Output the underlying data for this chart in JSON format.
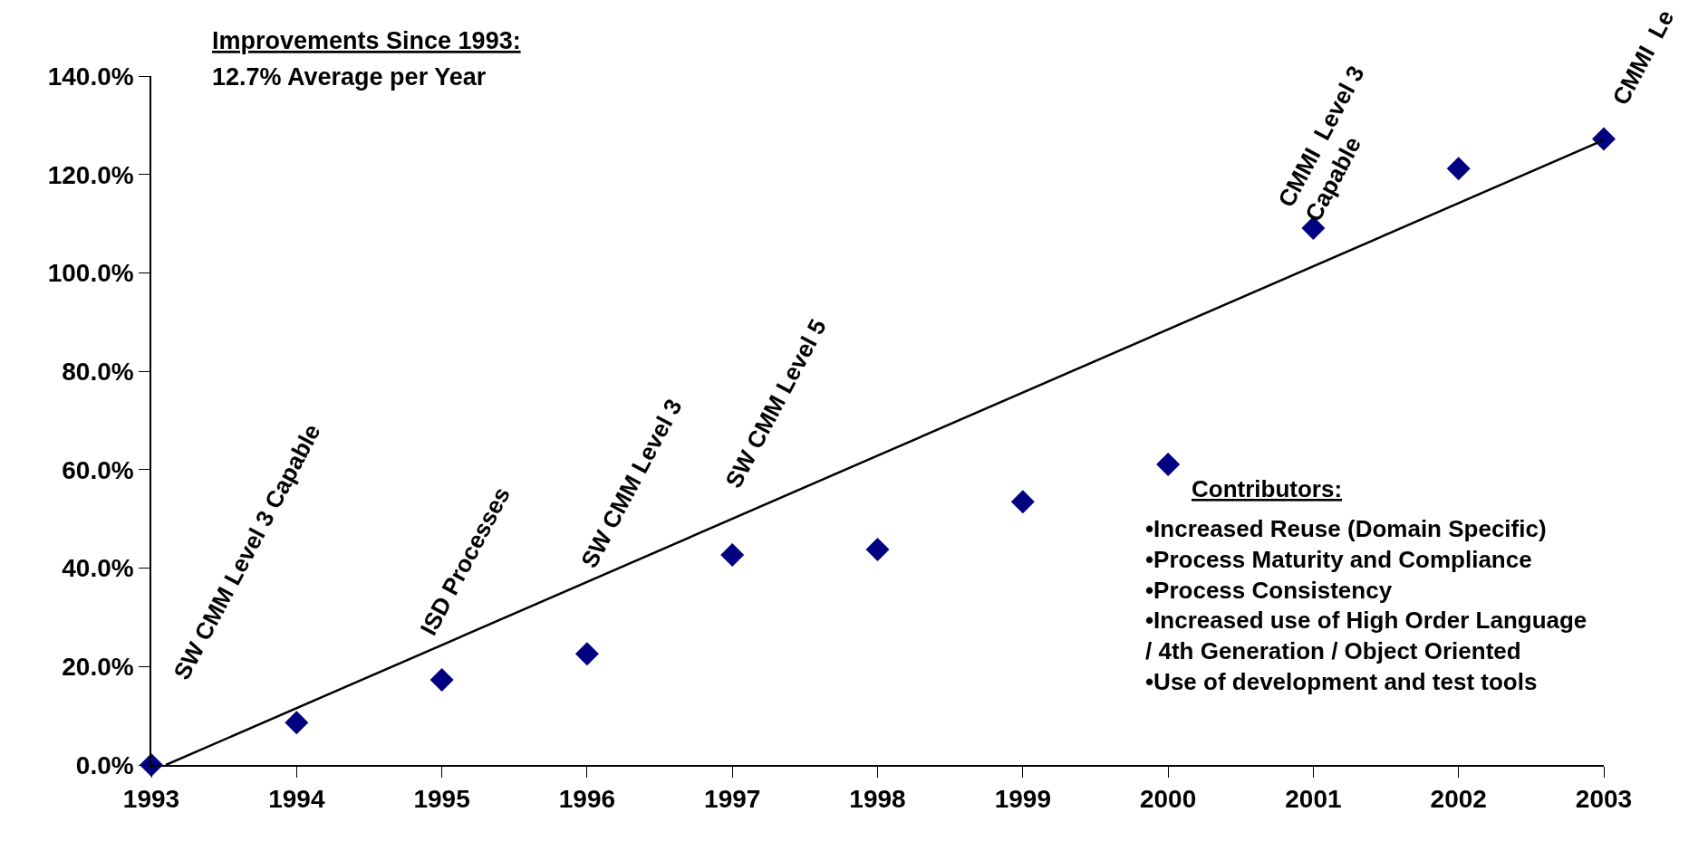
{
  "chart_data": {
    "type": "scatter",
    "title": "Improvements Since 1993:",
    "subtitle": "12.7% Average per Year",
    "x": [
      1993,
      1994,
      1995,
      1996,
      1997,
      1998,
      1999,
      2000,
      2001,
      2002,
      2003
    ],
    "series": [
      {
        "color": "#000080",
        "values": [
          0,
          8.6,
          17.3,
          22.6,
          42.7,
          43.8,
          53.5,
          61.1,
          109.1,
          121.2,
          127.2
        ],
        "marker": "diamond"
      },
      {
        "type": "line",
        "color": "#000000",
        "x": [
          1993.1,
          2003
        ],
        "values": [
          0,
          127
        ],
        "marker": "none",
        "line_style": "solid"
      }
    ],
    "xlim": [
      1993,
      2003
    ],
    "xticks": [
      1993,
      1994,
      1995,
      1996,
      1997,
      1998,
      1999,
      2000,
      2001,
      2002,
      2003
    ],
    "ylim": [
      0,
      140
    ],
    "yticks": [
      {
        "value": 0,
        "label": "0.0%"
      },
      {
        "value": 20,
        "label": "20.0%"
      },
      {
        "value": 40,
        "label": "40.0%"
      },
      {
        "value": 60,
        "label": "60.0%"
      },
      {
        "value": 80,
        "label": "80.0%"
      },
      {
        "value": 100,
        "label": "100.0%"
      },
      {
        "value": 120,
        "label": "120.0%"
      },
      {
        "value": 140,
        "label": "140.0%"
      }
    ],
    "annotations": [
      "Contributors:",
      "•Increased Reuse (Domain Specific)\n•Process Maturity and Compliance\n•Process Consistency\n•Increased use of High Order Language\n/ 4th Generation / Object Oriented\n•Use of development and test tools",
      "SW CMM Level 3 Capable",
      "ISD Processes",
      "SW CMM Level 3",
      "SW CMM Level 5",
      "CMMI  Level 3\nCapable",
      "CMMI  Le"
    ]
  }
}
